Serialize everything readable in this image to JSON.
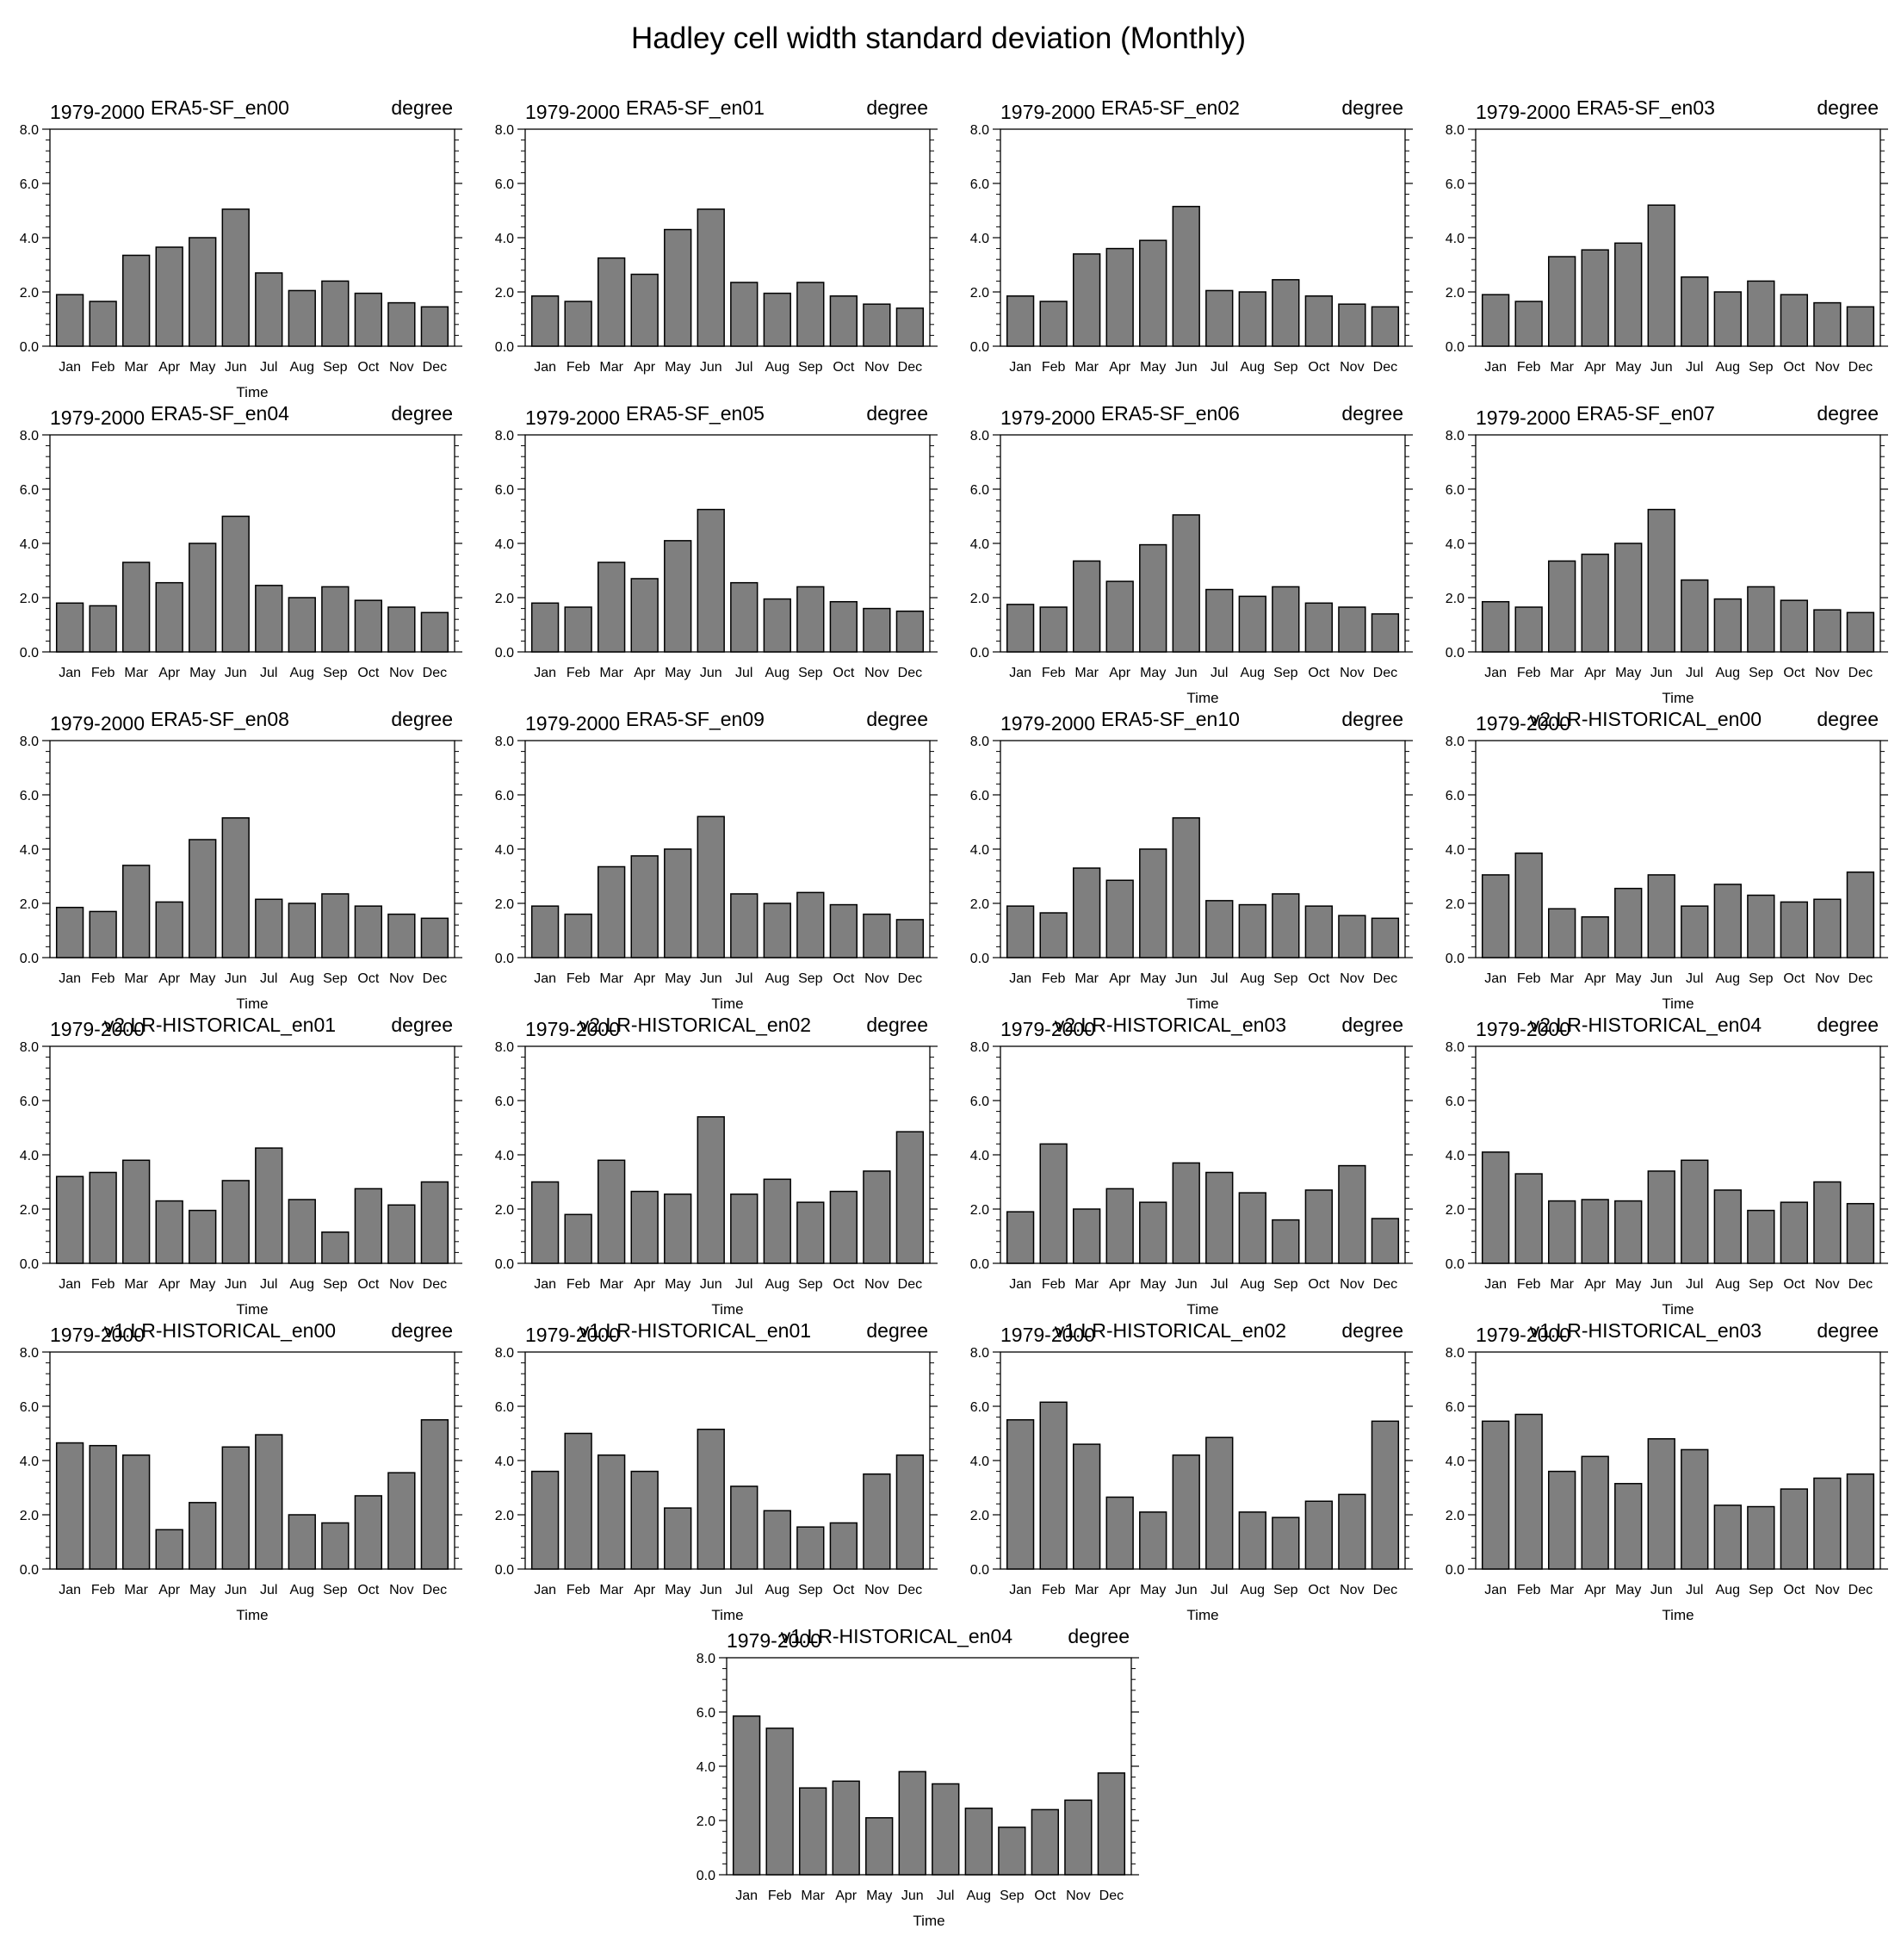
{
  "page": {
    "title": "Hadley cell width standard deviation (Monthly)"
  },
  "colors": {
    "bar_fill": "#7f7f7f",
    "bar_stroke": "#000000",
    "axis": "#000000",
    "background": "#ffffff"
  },
  "chart_data": [
    {
      "type": "bar",
      "title": "ERA5-SF_en00",
      "left_label": "1979-2000",
      "right_label": "degree",
      "xlabel": "Time",
      "ylim": [
        0,
        8
      ],
      "yticks": [
        "0.0",
        "2.0",
        "4.0",
        "6.0",
        "8.0"
      ],
      "categories": [
        "Jan",
        "Feb",
        "Mar",
        "Apr",
        "May",
        "Jun",
        "Jul",
        "Aug",
        "Sep",
        "Oct",
        "Nov",
        "Dec"
      ],
      "values": [
        1.9,
        1.65,
        3.35,
        3.65,
        4.0,
        5.05,
        2.7,
        2.05,
        2.4,
        1.95,
        1.6,
        1.45
      ]
    },
    {
      "type": "bar",
      "title": "ERA5-SF_en01",
      "left_label": "1979-2000",
      "right_label": "degree",
      "xlabel": "",
      "ylim": [
        0,
        8
      ],
      "yticks": [
        "0.0",
        "2.0",
        "4.0",
        "6.0",
        "8.0"
      ],
      "categories": [
        "Jan",
        "Feb",
        "Mar",
        "Apr",
        "May",
        "Jun",
        "Jul",
        "Aug",
        "Sep",
        "Oct",
        "Nov",
        "Dec"
      ],
      "values": [
        1.85,
        1.65,
        3.25,
        2.65,
        4.3,
        5.05,
        2.35,
        1.95,
        2.35,
        1.85,
        1.55,
        1.4
      ]
    },
    {
      "type": "bar",
      "title": "ERA5-SF_en02",
      "left_label": "1979-2000",
      "right_label": "degree",
      "xlabel": "",
      "ylim": [
        0,
        8
      ],
      "yticks": [
        "0.0",
        "2.0",
        "4.0",
        "6.0",
        "8.0"
      ],
      "categories": [
        "Jan",
        "Feb",
        "Mar",
        "Apr",
        "May",
        "Jun",
        "Jul",
        "Aug",
        "Sep",
        "Oct",
        "Nov",
        "Dec"
      ],
      "values": [
        1.85,
        1.65,
        3.4,
        3.6,
        3.9,
        5.15,
        2.05,
        2.0,
        2.45,
        1.85,
        1.55,
        1.45
      ]
    },
    {
      "type": "bar",
      "title": "ERA5-SF_en03",
      "left_label": "1979-2000",
      "right_label": "degree",
      "xlabel": "",
      "ylim": [
        0,
        8
      ],
      "yticks": [
        "0.0",
        "2.0",
        "4.0",
        "6.0",
        "8.0"
      ],
      "categories": [
        "Jan",
        "Feb",
        "Mar",
        "Apr",
        "May",
        "Jun",
        "Jul",
        "Aug",
        "Sep",
        "Oct",
        "Nov",
        "Dec"
      ],
      "values": [
        1.9,
        1.65,
        3.3,
        3.55,
        3.8,
        5.2,
        2.55,
        2.0,
        2.4,
        1.9,
        1.6,
        1.45
      ]
    },
    {
      "type": "bar",
      "title": "ERA5-SF_en04",
      "left_label": "1979-2000",
      "right_label": "degree",
      "xlabel": "",
      "ylim": [
        0,
        8
      ],
      "yticks": [
        "0.0",
        "2.0",
        "4.0",
        "6.0",
        "8.0"
      ],
      "categories": [
        "Jan",
        "Feb",
        "Mar",
        "Apr",
        "May",
        "Jun",
        "Jul",
        "Aug",
        "Sep",
        "Oct",
        "Nov",
        "Dec"
      ],
      "values": [
        1.8,
        1.7,
        3.3,
        2.55,
        4.0,
        5.0,
        2.45,
        2.0,
        2.4,
        1.9,
        1.65,
        1.45
      ]
    },
    {
      "type": "bar",
      "title": "ERA5-SF_en05",
      "left_label": "1979-2000",
      "right_label": "degree",
      "xlabel": "",
      "ylim": [
        0,
        8
      ],
      "yticks": [
        "0.0",
        "2.0",
        "4.0",
        "6.0",
        "8.0"
      ],
      "categories": [
        "Jan",
        "Feb",
        "Mar",
        "Apr",
        "May",
        "Jun",
        "Jul",
        "Aug",
        "Sep",
        "Oct",
        "Nov",
        "Dec"
      ],
      "values": [
        1.8,
        1.65,
        3.3,
        2.7,
        4.1,
        5.25,
        2.55,
        1.95,
        2.4,
        1.85,
        1.6,
        1.5
      ]
    },
    {
      "type": "bar",
      "title": "ERA5-SF_en06",
      "left_label": "1979-2000",
      "right_label": "degree",
      "xlabel": "Time",
      "ylim": [
        0,
        8
      ],
      "yticks": [
        "0.0",
        "2.0",
        "4.0",
        "6.0",
        "8.0"
      ],
      "categories": [
        "Jan",
        "Feb",
        "Mar",
        "Apr",
        "May",
        "Jun",
        "Jul",
        "Aug",
        "Sep",
        "Oct",
        "Nov",
        "Dec"
      ],
      "values": [
        1.75,
        1.65,
        3.35,
        2.6,
        3.95,
        5.05,
        2.3,
        2.05,
        2.4,
        1.8,
        1.65,
        1.4
      ]
    },
    {
      "type": "bar",
      "title": "ERA5-SF_en07",
      "left_label": "1979-2000",
      "right_label": "degree",
      "xlabel": "Time",
      "ylim": [
        0,
        8
      ],
      "yticks": [
        "0.0",
        "2.0",
        "4.0",
        "6.0",
        "8.0"
      ],
      "categories": [
        "Jan",
        "Feb",
        "Mar",
        "Apr",
        "May",
        "Jun",
        "Jul",
        "Aug",
        "Sep",
        "Oct",
        "Nov",
        "Dec"
      ],
      "values": [
        1.85,
        1.65,
        3.35,
        3.6,
        4.0,
        5.25,
        2.65,
        1.95,
        2.4,
        1.9,
        1.55,
        1.45
      ]
    },
    {
      "type": "bar",
      "title": "ERA5-SF_en08",
      "left_label": "1979-2000",
      "right_label": "degree",
      "xlabel": "Time",
      "ylim": [
        0,
        8
      ],
      "yticks": [
        "0.0",
        "2.0",
        "4.0",
        "6.0",
        "8.0"
      ],
      "categories": [
        "Jan",
        "Feb",
        "Mar",
        "Apr",
        "May",
        "Jun",
        "Jul",
        "Aug",
        "Sep",
        "Oct",
        "Nov",
        "Dec"
      ],
      "values": [
        1.85,
        1.7,
        3.4,
        2.05,
        4.35,
        5.15,
        2.15,
        2.0,
        2.35,
        1.9,
        1.6,
        1.45
      ]
    },
    {
      "type": "bar",
      "title": "ERA5-SF_en09",
      "left_label": "1979-2000",
      "right_label": "degree",
      "xlabel": "Time",
      "ylim": [
        0,
        8
      ],
      "yticks": [
        "0.0",
        "2.0",
        "4.0",
        "6.0",
        "8.0"
      ],
      "categories": [
        "Jan",
        "Feb",
        "Mar",
        "Apr",
        "May",
        "Jun",
        "Jul",
        "Aug",
        "Sep",
        "Oct",
        "Nov",
        "Dec"
      ],
      "values": [
        1.9,
        1.6,
        3.35,
        3.75,
        4.0,
        5.2,
        2.35,
        2.0,
        2.4,
        1.95,
        1.6,
        1.4
      ]
    },
    {
      "type": "bar",
      "title": "ERA5-SF_en10",
      "left_label": "1979-2000",
      "right_label": "degree",
      "xlabel": "Time",
      "ylim": [
        0,
        8
      ],
      "yticks": [
        "0.0",
        "2.0",
        "4.0",
        "6.0",
        "8.0"
      ],
      "categories": [
        "Jan",
        "Feb",
        "Mar",
        "Apr",
        "May",
        "Jun",
        "Jul",
        "Aug",
        "Sep",
        "Oct",
        "Nov",
        "Dec"
      ],
      "values": [
        1.9,
        1.65,
        3.3,
        2.85,
        4.0,
        5.15,
        2.1,
        1.95,
        2.35,
        1.9,
        1.55,
        1.45
      ]
    },
    {
      "type": "bar",
      "title": "v2.LR-HISTORICAL_en00",
      "left_label": "1979-2000",
      "right_label": "degree",
      "xlabel": "Time",
      "ylim": [
        0,
        8
      ],
      "yticks": [
        "0.0",
        "2.0",
        "4.0",
        "6.0",
        "8.0"
      ],
      "categories": [
        "Jan",
        "Feb",
        "Mar",
        "Apr",
        "May",
        "Jun",
        "Jul",
        "Aug",
        "Sep",
        "Oct",
        "Nov",
        "Dec"
      ],
      "values": [
        3.05,
        3.85,
        1.8,
        1.5,
        2.55,
        3.05,
        1.9,
        2.7,
        2.3,
        2.05,
        2.15,
        3.15
      ]
    },
    {
      "type": "bar",
      "title": "v2.LR-HISTORICAL_en01",
      "left_label": "1979-2000",
      "right_label": "degree",
      "xlabel": "Time",
      "ylim": [
        0,
        8
      ],
      "yticks": [
        "0.0",
        "2.0",
        "4.0",
        "6.0",
        "8.0"
      ],
      "categories": [
        "Jan",
        "Feb",
        "Mar",
        "Apr",
        "May",
        "Jun",
        "Jul",
        "Aug",
        "Sep",
        "Oct",
        "Nov",
        "Dec"
      ],
      "values": [
        3.2,
        3.35,
        3.8,
        2.3,
        1.95,
        3.05,
        4.25,
        2.35,
        1.15,
        2.75,
        2.15,
        3.0
      ]
    },
    {
      "type": "bar",
      "title": "v2.LR-HISTORICAL_en02",
      "left_label": "1979-2000",
      "right_label": "degree",
      "xlabel": "Time",
      "ylim": [
        0,
        8
      ],
      "yticks": [
        "0.0",
        "2.0",
        "4.0",
        "6.0",
        "8.0"
      ],
      "categories": [
        "Jan",
        "Feb",
        "Mar",
        "Apr",
        "May",
        "Jun",
        "Jul",
        "Aug",
        "Sep",
        "Oct",
        "Nov",
        "Dec"
      ],
      "values": [
        3.0,
        1.8,
        3.8,
        2.65,
        2.55,
        5.4,
        2.55,
        3.1,
        2.25,
        2.65,
        3.4,
        4.85
      ]
    },
    {
      "type": "bar",
      "title": "v2.LR-HISTORICAL_en03",
      "left_label": "1979-2000",
      "right_label": "degree",
      "xlabel": "Time",
      "ylim": [
        0,
        8
      ],
      "yticks": [
        "0.0",
        "2.0",
        "4.0",
        "6.0",
        "8.0"
      ],
      "categories": [
        "Jan",
        "Feb",
        "Mar",
        "Apr",
        "May",
        "Jun",
        "Jul",
        "Aug",
        "Sep",
        "Oct",
        "Nov",
        "Dec"
      ],
      "values": [
        1.9,
        4.4,
        2.0,
        2.75,
        2.25,
        3.7,
        3.35,
        2.6,
        1.6,
        2.7,
        3.6,
        1.65
      ]
    },
    {
      "type": "bar",
      "title": "v2.LR-HISTORICAL_en04",
      "left_label": "1979-2000",
      "right_label": "degree",
      "xlabel": "Time",
      "ylim": [
        0,
        8
      ],
      "yticks": [
        "0.0",
        "2.0",
        "4.0",
        "6.0",
        "8.0"
      ],
      "categories": [
        "Jan",
        "Feb",
        "Mar",
        "Apr",
        "May",
        "Jun",
        "Jul",
        "Aug",
        "Sep",
        "Oct",
        "Nov",
        "Dec"
      ],
      "values": [
        4.1,
        3.3,
        2.3,
        2.35,
        2.3,
        3.4,
        3.8,
        2.7,
        1.95,
        2.25,
        3.0,
        2.2
      ]
    },
    {
      "type": "bar",
      "title": "v1.LR-HISTORICAL_en00",
      "left_label": "1979-2000",
      "right_label": "degree",
      "xlabel": "Time",
      "ylim": [
        0,
        8
      ],
      "yticks": [
        "0.0",
        "2.0",
        "4.0",
        "6.0",
        "8.0"
      ],
      "categories": [
        "Jan",
        "Feb",
        "Mar",
        "Apr",
        "May",
        "Jun",
        "Jul",
        "Aug",
        "Sep",
        "Oct",
        "Nov",
        "Dec"
      ],
      "values": [
        4.65,
        4.55,
        4.2,
        1.45,
        2.45,
        4.5,
        4.95,
        2.0,
        1.7,
        2.7,
        3.55,
        5.5
      ]
    },
    {
      "type": "bar",
      "title": "v1.LR-HISTORICAL_en01",
      "left_label": "1979-2000",
      "right_label": "degree",
      "xlabel": "Time",
      "ylim": [
        0,
        8
      ],
      "yticks": [
        "0.0",
        "2.0",
        "4.0",
        "6.0",
        "8.0"
      ],
      "categories": [
        "Jan",
        "Feb",
        "Mar",
        "Apr",
        "May",
        "Jun",
        "Jul",
        "Aug",
        "Sep",
        "Oct",
        "Nov",
        "Dec"
      ],
      "values": [
        3.6,
        5.0,
        4.2,
        3.6,
        2.25,
        5.15,
        3.05,
        2.15,
        1.55,
        1.7,
        3.5,
        4.2
      ]
    },
    {
      "type": "bar",
      "title": "v1.LR-HISTORICAL_en02",
      "left_label": "1979-2000",
      "right_label": "degree",
      "xlabel": "Time",
      "ylim": [
        0,
        8
      ],
      "yticks": [
        "0.0",
        "2.0",
        "4.0",
        "6.0",
        "8.0"
      ],
      "categories": [
        "Jan",
        "Feb",
        "Mar",
        "Apr",
        "May",
        "Jun",
        "Jul",
        "Aug",
        "Sep",
        "Oct",
        "Nov",
        "Dec"
      ],
      "values": [
        5.5,
        6.15,
        4.6,
        2.65,
        2.1,
        4.2,
        4.85,
        2.1,
        1.9,
        2.5,
        2.75,
        5.45
      ]
    },
    {
      "type": "bar",
      "title": "v1.LR-HISTORICAL_en03",
      "left_label": "1979-2000",
      "right_label": "degree",
      "xlabel": "Time",
      "ylim": [
        0,
        8
      ],
      "yticks": [
        "0.0",
        "2.0",
        "4.0",
        "6.0",
        "8.0"
      ],
      "categories": [
        "Jan",
        "Feb",
        "Mar",
        "Apr",
        "May",
        "Jun",
        "Jul",
        "Aug",
        "Sep",
        "Oct",
        "Nov",
        "Dec"
      ],
      "values": [
        5.45,
        5.7,
        3.6,
        4.15,
        3.15,
        4.8,
        4.4,
        2.35,
        2.3,
        2.95,
        3.35,
        3.5
      ]
    },
    {
      "type": "bar",
      "title": "v1.LR-HISTORICAL_en04",
      "left_label": "1979-2000",
      "right_label": "degree",
      "xlabel": "Time",
      "ylim": [
        0,
        8
      ],
      "yticks": [
        "0.0",
        "2.0",
        "4.0",
        "6.0",
        "8.0"
      ],
      "categories": [
        "Jan",
        "Feb",
        "Mar",
        "Apr",
        "May",
        "Jun",
        "Jul",
        "Aug",
        "Sep",
        "Oct",
        "Nov",
        "Dec"
      ],
      "values": [
        5.85,
        5.4,
        3.2,
        3.45,
        2.1,
        3.8,
        3.35,
        2.45,
        1.75,
        2.4,
        2.75,
        3.75
      ]
    }
  ]
}
